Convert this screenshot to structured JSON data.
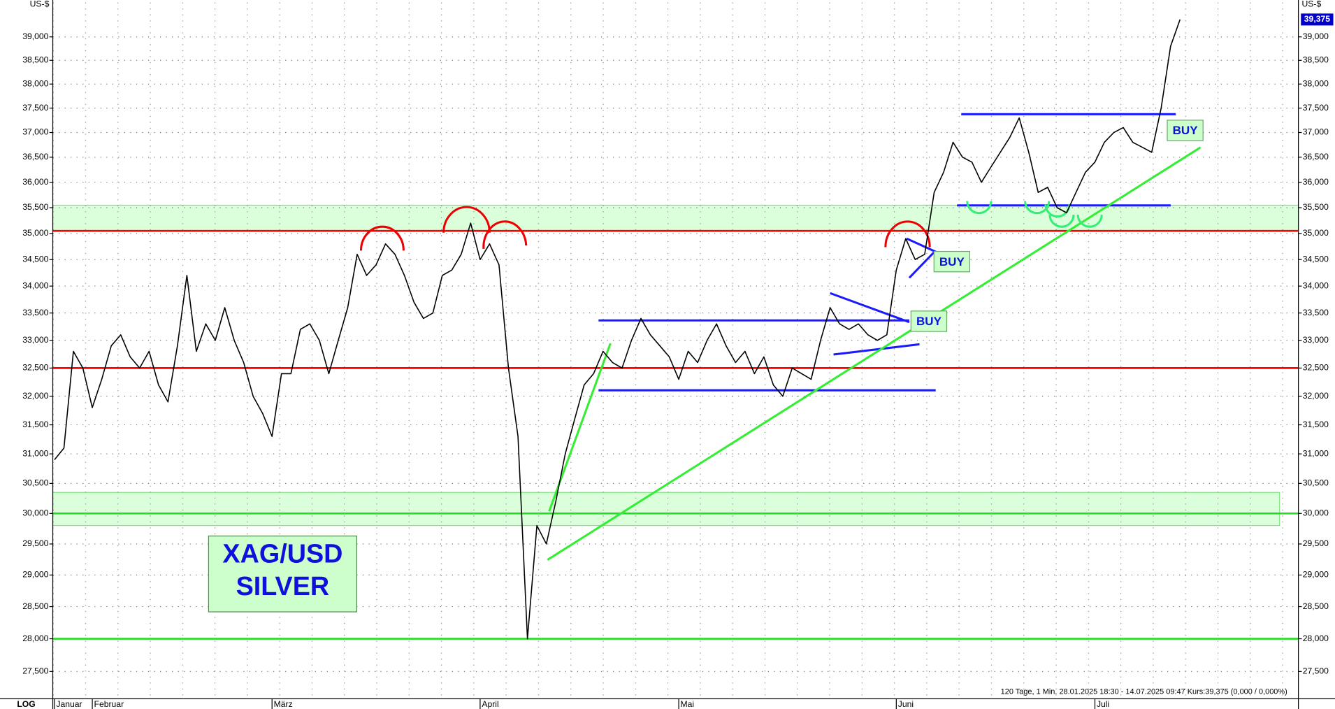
{
  "chart_data": {
    "type": "line",
    "log_scale": true,
    "axis_scale_label": "LOG",
    "y_unit_left": "US-$",
    "y_unit_right": "US-$",
    "color": "#000000",
    "grid": true,
    "last_price_label": "39,375",
    "footer": "120 Tage, 1 Min. 28.01.2025 18:30 - 14.07.2025 09:47 Kurs:39,375 (0,000 / 0,000%)",
    "categories": [
      "Januar",
      null,
      null,
      null,
      "Februar",
      null,
      null,
      null,
      null,
      null,
      null,
      null,
      null,
      null,
      null,
      null,
      null,
      null,
      null,
      null,
      null,
      null,
      null,
      "März",
      null,
      null,
      null,
      null,
      null,
      null,
      null,
      null,
      null,
      null,
      null,
      null,
      null,
      null,
      null,
      null,
      null,
      null,
      null,
      null,
      null,
      "April",
      null,
      null,
      null,
      null,
      null,
      null,
      null,
      null,
      null,
      null,
      null,
      null,
      null,
      null,
      null,
      null,
      null,
      null,
      null,
      null,
      "Mai",
      null,
      null,
      null,
      null,
      null,
      null,
      null,
      null,
      null,
      null,
      null,
      null,
      null,
      null,
      null,
      null,
      null,
      null,
      null,
      null,
      null,
      null,
      "Juni",
      null,
      null,
      null,
      null,
      null,
      null,
      null,
      null,
      null,
      null,
      null,
      null,
      null,
      null,
      null,
      null,
      null,
      null,
      null,
      null,
      "Juli",
      null,
      null,
      null,
      null,
      null,
      null,
      null,
      null,
      null
    ],
    "values": [
      30900,
      31100,
      32800,
      32500,
      31800,
      32300,
      32900,
      33100,
      32700,
      32500,
      32800,
      32200,
      31900,
      32900,
      34200,
      32800,
      33300,
      33000,
      33600,
      33000,
      32600,
      32000,
      31700,
      31300,
      32400,
      32400,
      33200,
      33300,
      33000,
      32400,
      33000,
      33600,
      34600,
      34200,
      34400,
      34800,
      34600,
      34200,
      33700,
      33400,
      33500,
      34200,
      34300,
      34600,
      35200,
      34500,
      34800,
      34400,
      32500,
      31300,
      28000,
      29800,
      29500,
      30200,
      31000,
      31600,
      32200,
      32400,
      32800,
      32600,
      32500,
      33000,
      33400,
      33100,
      32900,
      32700,
      32300,
      32800,
      32600,
      33000,
      33300,
      32900,
      32600,
      32800,
      32400,
      32700,
      32200,
      32000,
      32500,
      32400,
      32300,
      33000,
      33600,
      33300,
      33200,
      33300,
      33100,
      33000,
      33100,
      34300,
      34900,
      34500,
      34600,
      35800,
      36200,
      36800,
      36500,
      36400,
      36000,
      36300,
      36600,
      36900,
      37300,
      36600,
      35800,
      35900,
      35500,
      35400,
      35800,
      36200,
      36400,
      36800,
      37000,
      37100,
      36800,
      36700,
      36600,
      37500,
      38800,
      39375
    ],
    "ylim": [
      27090,
      39800
    ],
    "yticks": [
      {
        "value": 27500,
        "label": "27,500"
      },
      {
        "value": 28000,
        "label": "28,000"
      },
      {
        "value": 28500,
        "label": "28,500"
      },
      {
        "value": 29000,
        "label": "29,000"
      },
      {
        "value": 29500,
        "label": "29,500"
      },
      {
        "value": 30000,
        "label": "30,000"
      },
      {
        "value": 30500,
        "label": "30,500"
      },
      {
        "value": 31000,
        "label": "31,000"
      },
      {
        "value": 31500,
        "label": "31,500"
      },
      {
        "value": 32000,
        "label": "32,000"
      },
      {
        "value": 32500,
        "label": "32,500"
      },
      {
        "value": 33000,
        "label": "33,000"
      },
      {
        "value": 33500,
        "label": "33,500"
      },
      {
        "value": 34000,
        "label": "34,000"
      },
      {
        "value": 34500,
        "label": "34,500"
      },
      {
        "value": 35000,
        "label": "35,000"
      },
      {
        "value": 35500,
        "label": "35,500"
      },
      {
        "value": 36000,
        "label": "36,000"
      },
      {
        "value": 36500,
        "label": "36,500"
      },
      {
        "value": 37000,
        "label": "37,000"
      },
      {
        "value": 37500,
        "label": "37,500"
      },
      {
        "value": 38000,
        "label": "38,000"
      },
      {
        "value": 38500,
        "label": "38,500"
      },
      {
        "value": 39000,
        "label": "39,000"
      }
    ],
    "levels": [
      {
        "value": 35050,
        "color": "#ff0000"
      },
      {
        "value": 32500,
        "color": "#ff0000"
      },
      {
        "value": 30000,
        "color": "#22dd22"
      },
      {
        "value": 28000,
        "color": "#22dd22"
      }
    ],
    "zones": [
      [
        35050,
        35550
      ],
      [
        29800,
        30350
      ]
    ],
    "annotations": {
      "title_lines": [
        "XAG/USD",
        "SILVER"
      ],
      "signals": [
        "BUY",
        "BUY",
        "BUY"
      ]
    }
  }
}
